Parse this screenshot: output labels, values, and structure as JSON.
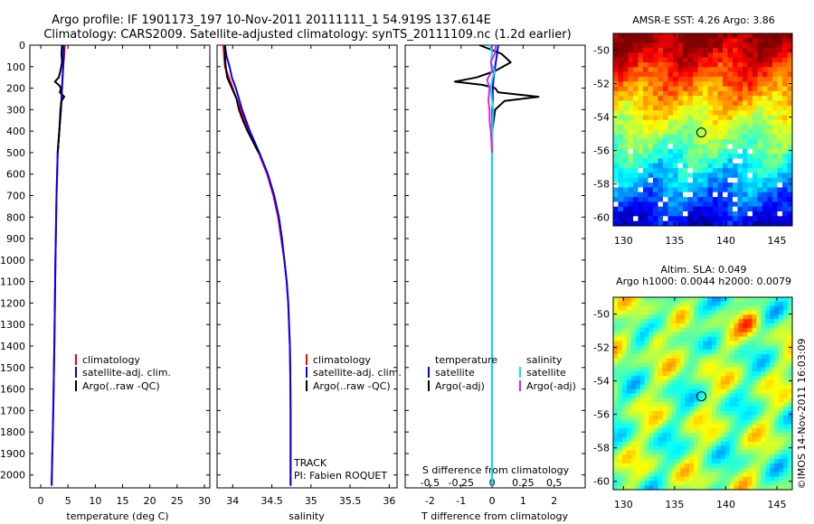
{
  "figure": {
    "title_line1": "Argo profile: IF 1901173_197 10-Nov-2011 20111111_1 54.919S 137.614E",
    "title_line2": "Climatology: CARS2009. Satellite-adjusted climatology: synTS_20111109.nc (1.2d earlier)",
    "sst_title": "AMSR-E SST: 4.26 Argo: 3.86",
    "sla_title1": "Altim. SLA: 0.049",
    "sla_title2": "Argo h1000: 0.0044 h2000: 0.0079",
    "credit": "©IMOS 14-Nov-2011 16:03:09",
    "track_label": "TRACK",
    "pi_label": "PI: Fabien ROQUET"
  },
  "colors": {
    "climatology": "#ff0000",
    "satellite": "#0000ff",
    "argo": "#000000",
    "salinity_satellite": "#00e5ee",
    "salinity_argo": "#e020e0"
  },
  "chart_data": [
    {
      "type": "line",
      "title": "",
      "xlabel": "temperature (deg C)",
      "ylabel": "",
      "xlim": [
        -2,
        31
      ],
      "ylim": [
        2060,
        0
      ],
      "xticks": [
        "0",
        "5",
        "10",
        "15",
        "20",
        "25",
        "30"
      ],
      "yticks": [
        "0",
        "100",
        "200",
        "300",
        "400",
        "500",
        "600",
        "700",
        "800",
        "900",
        "1000",
        "1100",
        "1200",
        "1300",
        "1400",
        "1500",
        "1600",
        "1700",
        "1800",
        "1900",
        "2000"
      ],
      "legend": [
        "climatology",
        "satellite-adj. clim.",
        "Argo(..raw -QC)"
      ],
      "legend_position": "lower-center",
      "series": [
        {
          "name": "climatology",
          "color": "#ff0000",
          "depth": [
            0,
            50,
            100,
            150,
            200,
            250,
            300,
            400,
            500,
            700,
            1000,
            1400,
            1700,
            2050
          ],
          "values": [
            4.4,
            4.3,
            4.1,
            4.0,
            3.9,
            3.8,
            3.7,
            3.4,
            3.1,
            2.9,
            2.7,
            2.5,
            2.3,
            2.0
          ]
        },
        {
          "name": "satellite-adj. clim.",
          "color": "#0000ff",
          "depth": [
            0,
            50,
            100,
            150,
            200,
            250,
            300,
            400,
            500,
            700,
            1000,
            1400,
            1700,
            2050
          ],
          "values": [
            4.2,
            4.15,
            4.1,
            4.0,
            3.9,
            3.8,
            3.7,
            3.4,
            3.1,
            2.9,
            2.7,
            2.5,
            2.3,
            2.0
          ]
        },
        {
          "name": "Argo(..raw -QC)",
          "color": "#000000",
          "depth": [
            0,
            40,
            80,
            120,
            150,
            170,
            185,
            200,
            220,
            240,
            260,
            300,
            400,
            500
          ],
          "values": [
            3.9,
            3.8,
            3.9,
            3.6,
            3.3,
            2.6,
            3.3,
            3.7,
            3.5,
            4.3,
            3.8,
            3.6,
            3.4,
            3.1
          ]
        }
      ]
    },
    {
      "type": "line",
      "title": "",
      "xlabel": "salinity",
      "ylabel": "",
      "xlim": [
        33.8,
        36.1
      ],
      "ylim": [
        2060,
        0
      ],
      "xticks": [
        "34",
        "34.5",
        "35",
        "35.5",
        "36"
      ],
      "legend": [
        "climatology",
        "satellite-adj. clim.",
        "Argo(..raw -QC)"
      ],
      "legend_position": "lower-right",
      "series": [
        {
          "name": "climatology",
          "color": "#ff0000",
          "depth": [
            0,
            100,
            150,
            200,
            300,
            400,
            500,
            600,
            700,
            800,
            900,
            1000,
            1100,
            1200,
            1300,
            1400,
            1500,
            1700,
            2050
          ],
          "values": [
            33.88,
            33.9,
            33.95,
            34.0,
            34.1,
            34.2,
            34.33,
            34.44,
            34.52,
            34.58,
            34.62,
            34.66,
            34.69,
            34.71,
            34.72,
            34.73,
            34.735,
            34.74,
            34.74
          ]
        },
        {
          "name": "satellite-adj. clim.",
          "color": "#0000ff",
          "depth": [
            0,
            50,
            100,
            150,
            200,
            300,
            400,
            500,
            600,
            700,
            800,
            900,
            1000,
            1100,
            1200,
            1300,
            1400,
            1500,
            1700,
            2050
          ],
          "values": [
            33.9,
            33.92,
            33.96,
            33.99,
            34.04,
            34.12,
            34.22,
            34.34,
            34.45,
            34.53,
            34.59,
            34.63,
            34.66,
            34.69,
            34.71,
            34.72,
            34.73,
            34.735,
            34.74,
            34.74
          ]
        },
        {
          "name": "Argo(..raw -QC)",
          "color": "#000000",
          "depth": [
            0,
            50,
            100,
            150,
            200,
            250,
            300,
            350,
            400,
            450,
            500
          ],
          "values": [
            33.9,
            33.9,
            33.91,
            33.93,
            33.99,
            34.05,
            34.08,
            34.13,
            34.19,
            34.26,
            34.33
          ]
        }
      ]
    },
    {
      "type": "line",
      "title": "S difference from climatology",
      "xlabel": "T difference from climatology",
      "ylabel": "",
      "xlim": [
        -2.8,
        3.0
      ],
      "ylim": [
        2060,
        0
      ],
      "xticks": [
        "-2",
        "-1",
        "0",
        "1",
        "2"
      ],
      "top_xticks": [
        "-0.5",
        "-0.25",
        "0",
        "0.25",
        "0.5"
      ],
      "legend": [
        "temperature",
        "satellite",
        "Argo(-adj)",
        "salinity",
        "satellite",
        "Argo(-adj)"
      ],
      "legend_position": "lower-center",
      "series": [
        {
          "name": "temperature satellite",
          "color": "#0000ff",
          "depth": [
            0,
            50,
            100,
            150,
            200,
            250,
            300,
            400,
            500,
            800,
            1200,
            1600,
            2050
          ],
          "values": [
            0.2,
            0.15,
            0.1,
            0.05,
            0.02,
            0.02,
            0.01,
            0.0,
            0.0,
            0.0,
            0.0,
            0.0,
            0.0
          ]
        },
        {
          "name": "temperature Argo(-adj)",
          "color": "#000000",
          "depth": [
            0,
            40,
            80,
            120,
            150,
            170,
            185,
            200,
            220,
            240,
            260,
            300,
            400,
            500
          ],
          "values": [
            -0.4,
            0.3,
            0.6,
            0.1,
            -0.5,
            -1.2,
            -0.3,
            0.1,
            0.2,
            1.5,
            0.4,
            0.1,
            0.0,
            0.0
          ]
        },
        {
          "name": "salinity satellite",
          "color": "#00e5ee",
          "depth": [
            0,
            30,
            80,
            120,
            160,
            200,
            260,
            300,
            400,
            500,
            700,
            1000,
            1500,
            2050
          ],
          "values": [
            -0.02,
            0.0,
            -0.01,
            0.02,
            0.0,
            -0.01,
            0.0,
            0.01,
            0.0,
            0.0,
            0.0,
            0.0,
            0.0,
            0.0
          ]
        },
        {
          "name": "salinity Argo(-adj)",
          "color": "#e020e0",
          "depth": [
            0,
            40,
            80,
            120,
            160,
            200,
            260,
            300,
            350,
            400,
            500
          ],
          "values": [
            0.03,
            0.02,
            -0.01,
            0.0,
            -0.04,
            -0.02,
            -0.03,
            -0.02,
            -0.02,
            -0.01,
            0.0
          ]
        }
      ]
    },
    {
      "type": "heatmap",
      "title": "AMSR-E SST: 4.26 Argo: 3.86",
      "xlim": [
        129,
        146.5
      ],
      "ylim": [
        -60.5,
        -49
      ],
      "xticks": [
        "130",
        "135",
        "140",
        "145"
      ],
      "yticks": [
        "-50",
        "-52",
        "-54",
        "-56",
        "-58",
        "-60"
      ],
      "marker": {
        "lon": 137.614,
        "lat": -54.919
      }
    },
    {
      "type": "heatmap",
      "title": "Altim. SLA: 0.049",
      "xlim": [
        129,
        146.5
      ],
      "ylim": [
        -60.5,
        -49
      ],
      "xticks": [
        "130",
        "135",
        "140",
        "145"
      ],
      "yticks": [
        "-50",
        "-52",
        "-54",
        "-56",
        "-58",
        "-60"
      ],
      "marker": {
        "lon": 137.614,
        "lat": -54.919
      }
    }
  ]
}
